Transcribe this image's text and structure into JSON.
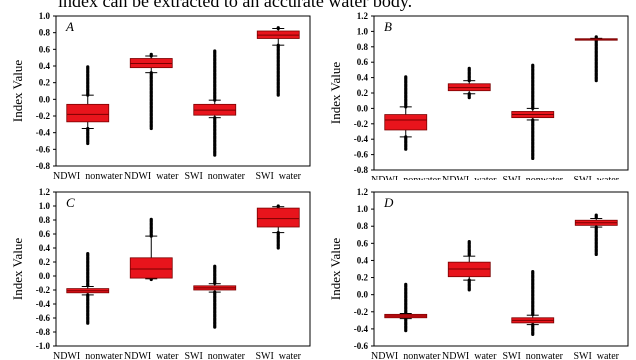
{
  "caption": "index can be extracted to an accurate water body.",
  "chart_data": [
    {
      "type": "box",
      "panel_label": "A",
      "ylabel": "Index Value",
      "ylim": [
        -0.8,
        1.0
      ],
      "yticks": [
        "-0.8",
        "-0.6",
        "-0.4",
        "-0.2",
        "0.0",
        "0.2",
        "0.4",
        "0.6",
        "0.8",
        "1.0"
      ],
      "categories": [
        "NDWI_nonwater",
        "NDWI_water",
        "SWI_nonwater",
        "SWI_water"
      ],
      "boxes": [
        {
          "category": "NDWI_nonwater",
          "whisker_low": -0.35,
          "q1": -0.27,
          "median": -0.18,
          "q3": -0.06,
          "whisker_high": 0.05,
          "outlier_low": -0.53,
          "outlier_high": 0.39
        },
        {
          "category": "NDWI_water",
          "whisker_low": 0.32,
          "q1": 0.38,
          "median": 0.43,
          "q3": 0.49,
          "whisker_high": 0.52,
          "outlier_low": -0.35,
          "outlier_high": 0.54
        },
        {
          "category": "SWI_nonwater",
          "whisker_low": -0.22,
          "q1": -0.19,
          "median": -0.13,
          "q3": -0.06,
          "whisker_high": -0.01,
          "outlier_low": -0.67,
          "outlier_high": 0.58
        },
        {
          "category": "SWI_water",
          "whisker_low": 0.65,
          "q1": 0.73,
          "median": 0.77,
          "q3": 0.82,
          "whisker_high": 0.85,
          "outlier_low": 0.05,
          "outlier_high": 0.86
        }
      ]
    },
    {
      "type": "box",
      "panel_label": "B",
      "ylabel": "Index Value",
      "ylim": [
        -0.8,
        1.2
      ],
      "yticks": [
        "-0.8",
        "-0.6",
        "-0.4",
        "-0.2",
        "0.0",
        "0.2",
        "0.4",
        "0.6",
        "0.8",
        "1.0",
        "1.2"
      ],
      "categories": [
        "NDWI_nonwater",
        "NDWI_water",
        "SWI_nonwater",
        "SWI_water"
      ],
      "boxes": [
        {
          "category": "NDWI_nonwater",
          "whisker_low": -0.37,
          "q1": -0.28,
          "median": -0.15,
          "q3": -0.08,
          "whisker_high": 0.02,
          "outlier_low": -0.53,
          "outlier_high": 0.41
        },
        {
          "category": "NDWI_water",
          "whisker_low": 0.19,
          "q1": 0.23,
          "median": 0.27,
          "q3": 0.32,
          "whisker_high": 0.36,
          "outlier_low": 0.14,
          "outlier_high": 0.52
        },
        {
          "category": "SWI_nonwater",
          "whisker_low": -0.15,
          "q1": -0.12,
          "median": -0.08,
          "q3": -0.04,
          "whisker_high": 0.0,
          "outlier_low": -0.65,
          "outlier_high": 0.56
        },
        {
          "category": "SWI_water",
          "whisker_low": 0.89,
          "q1": 0.895,
          "median": 0.9,
          "q3": 0.905,
          "whisker_high": 0.91,
          "outlier_low": 0.36,
          "outlier_high": 0.93
        }
      ]
    },
    {
      "type": "box",
      "panel_label": "C",
      "ylabel": "Index Value",
      "ylim": [
        -1.0,
        1.2
      ],
      "yticks": [
        "-1.0",
        "-0.8",
        "-0.6",
        "-0.4",
        "-0.2",
        "0.0",
        "0.2",
        "0.4",
        "0.6",
        "0.8",
        "1.0",
        "1.2"
      ],
      "categories": [
        "NDWI_nonwater",
        "NDWI_water",
        "SWI_nonwater",
        "SWI_water"
      ],
      "boxes": [
        {
          "category": "NDWI_nonwater",
          "whisker_low": -0.27,
          "q1": -0.24,
          "median": -0.21,
          "q3": -0.18,
          "whisker_high": -0.15,
          "outlier_low": -0.69,
          "outlier_high": 0.32
        },
        {
          "category": "NDWI_water",
          "whisker_low": -0.04,
          "q1": -0.03,
          "median": 0.1,
          "q3": 0.26,
          "whisker_high": 0.57,
          "outlier_low": -0.05,
          "outlier_high": 0.81
        },
        {
          "category": "SWI_nonwater",
          "whisker_low": -0.23,
          "q1": -0.2,
          "median": -0.17,
          "q3": -0.14,
          "whisker_high": -0.11,
          "outlier_low": -0.73,
          "outlier_high": 0.14
        },
        {
          "category": "SWI_water",
          "whisker_low": 0.62,
          "q1": 0.7,
          "median": 0.82,
          "q3": 0.97,
          "whisker_high": 0.99,
          "outlier_low": 0.4,
          "outlier_high": 1.0
        }
      ]
    },
    {
      "type": "box",
      "panel_label": "D",
      "ylabel": "Index Value",
      "ylim": [
        -0.6,
        1.2
      ],
      "yticks": [
        "-0.6",
        "-0.4",
        "-0.2",
        "0.0",
        "0.2",
        "0.4",
        "0.6",
        "0.8",
        "1.0",
        "1.2"
      ],
      "categories": [
        "NDWI_nonwater",
        "NDWI_water",
        "SWI_nonwater",
        "SWI_water"
      ],
      "boxes": [
        {
          "category": "NDWI_nonwater",
          "whisker_low": -0.28,
          "q1": -0.27,
          "median": -0.25,
          "q3": -0.23,
          "whisker_high": -0.22,
          "outlier_low": -0.42,
          "outlier_high": 0.12
        },
        {
          "category": "NDWI_water",
          "whisker_low": 0.17,
          "q1": 0.21,
          "median": 0.3,
          "q3": 0.38,
          "whisker_high": 0.45,
          "outlier_low": 0.05,
          "outlier_high": 0.62
        },
        {
          "category": "SWI_nonwater",
          "whisker_low": -0.35,
          "q1": -0.33,
          "median": -0.3,
          "q3": -0.27,
          "whisker_high": -0.24,
          "outlier_low": -0.47,
          "outlier_high": 0.27
        },
        {
          "category": "SWI_water",
          "whisker_low": 0.79,
          "q1": 0.81,
          "median": 0.84,
          "q3": 0.87,
          "whisker_high": 0.89,
          "outlier_low": 0.47,
          "outlier_high": 0.93
        }
      ]
    }
  ],
  "style": {
    "box_color": "#e8141c",
    "box_edge": "#7a0000",
    "axis_color": "#000000"
  }
}
